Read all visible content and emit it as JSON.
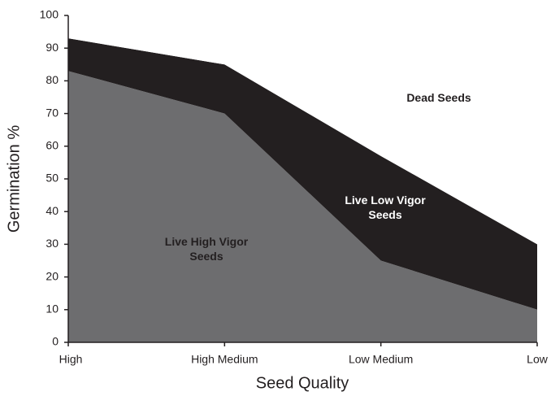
{
  "chart_data": {
    "type": "stacked_area",
    "xlabel": "Seed Quality",
    "ylabel": "Germination %",
    "categories": [
      "High",
      "High Medium",
      "Low Medium",
      "Low"
    ],
    "series": [
      {
        "name": "Live High Vigor Seeds",
        "color": "#6d6d6f",
        "values": [
          83,
          70,
          25,
          10
        ]
      },
      {
        "name": "Live Low Vigor Seeds",
        "color": "#231f20",
        "values": [
          10,
          15,
          32,
          20
        ]
      },
      {
        "name": "Dead Seeds",
        "color": "#ffffff",
        "values": [
          7,
          15,
          43,
          70
        ]
      }
    ],
    "ylim": [
      0,
      100
    ],
    "yticks": [
      0,
      10,
      20,
      30,
      40,
      50,
      60,
      70,
      80,
      90,
      100
    ]
  }
}
